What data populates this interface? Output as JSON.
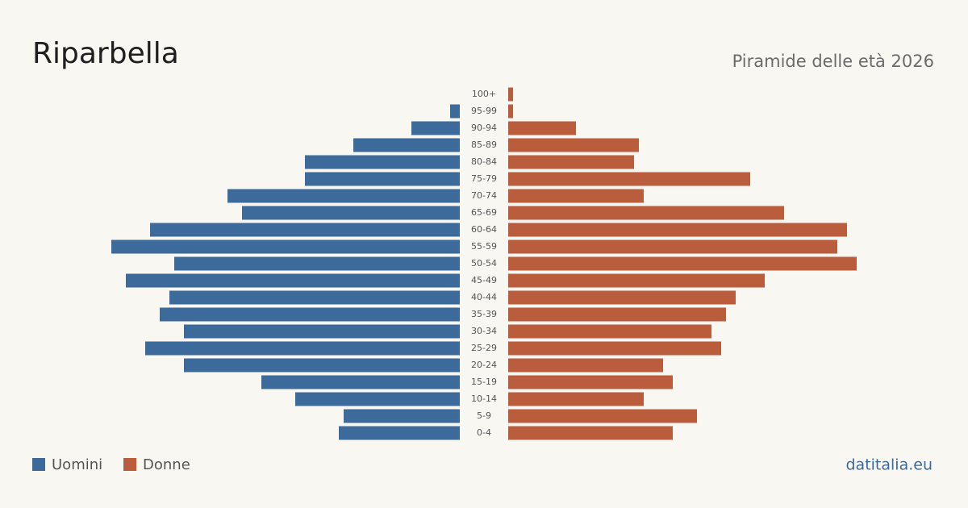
{
  "chart_data": {
    "type": "pyramid",
    "title": "Riparbella",
    "subtitle": "Piramide delle età 2026",
    "source": "datitalia.eu",
    "categories": [
      "100+",
      "95-99",
      "90-94",
      "85-89",
      "80-84",
      "75-79",
      "70-74",
      "65-69",
      "60-64",
      "55-59",
      "50-54",
      "45-49",
      "40-44",
      "35-39",
      "30-34",
      "25-29",
      "20-24",
      "15-19",
      "10-14",
      "5-9",
      "0-4"
    ],
    "series": [
      {
        "name": "Uomini",
        "color": "#3b6a9b",
        "values": [
          0,
          2,
          10,
          22,
          32,
          32,
          48,
          45,
          64,
          72,
          59,
          69,
          60,
          62,
          57,
          65,
          57,
          41,
          34,
          24,
          25
        ]
      },
      {
        "name": "Donne",
        "color": "#b95d3d",
        "values": [
          1,
          1,
          14,
          27,
          26,
          50,
          28,
          57,
          70,
          68,
          72,
          53,
          47,
          45,
          42,
          44,
          32,
          34,
          28,
          39,
          34
        ]
      }
    ]
  }
}
